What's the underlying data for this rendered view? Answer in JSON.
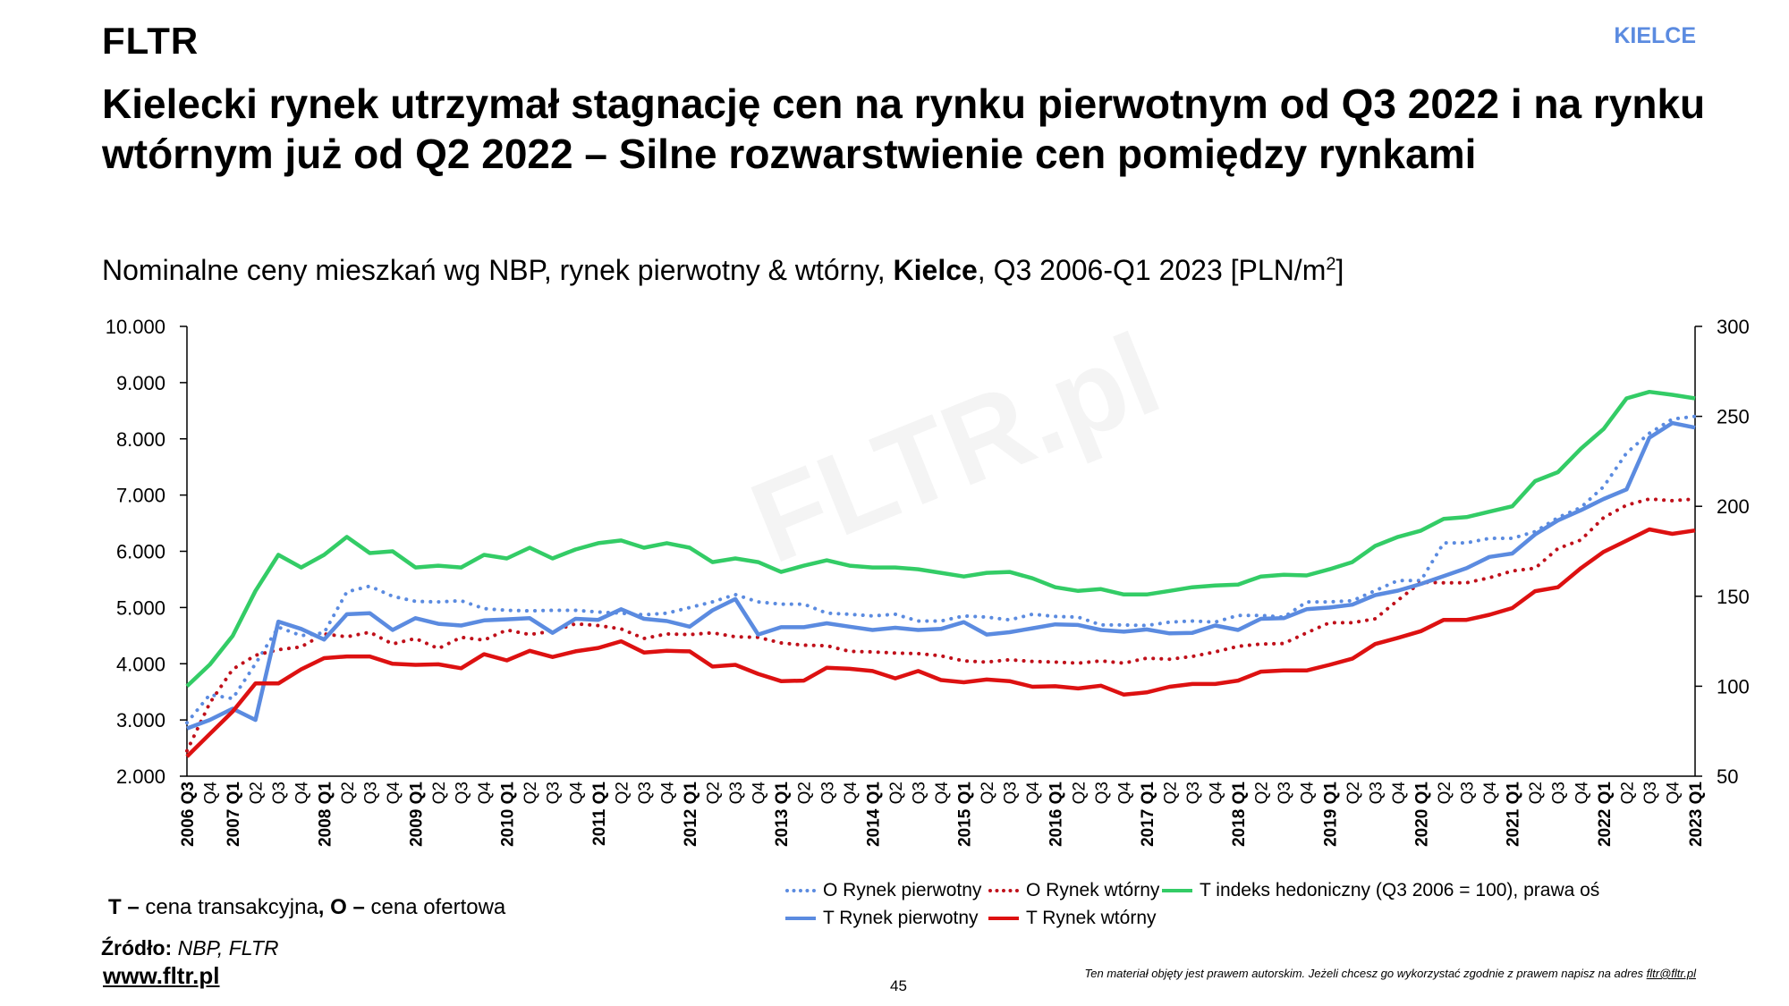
{
  "header": {
    "logo": "FLTR",
    "city": "KIELCE",
    "title": "Kielecki rynek utrzymał stagnację cen na rynku pierwotnym od Q3 2022 i na rynku wtórnym już od Q2 2022 – Silne rozwarstwienie cen pomiędzy rynkami"
  },
  "subtitle": {
    "pre": "Nominalne ceny mieszkań wg NBP, rynek pierwotny & wtórny, ",
    "bold": "Kielce",
    "post": ", Q3 2006-Q1 2023 [PLN/m",
    "sup": "2",
    "end": "]"
  },
  "watermark": "FLTR.pl",
  "chart_data": {
    "type": "line",
    "title": "Nominalne ceny mieszkań wg NBP, rynek pierwotny & wtórny, Kielce, Q3 2006-Q1 2023 [PLN/m2]",
    "x": [
      "2006 Q3",
      "Q4",
      "2007 Q1",
      "Q2",
      "Q3",
      "Q4",
      "2008 Q1",
      "Q2",
      "Q3",
      "Q4",
      "2009 Q1",
      "Q2",
      "Q3",
      "Q4",
      "2010 Q1",
      "Q2",
      "Q3",
      "Q4",
      "2011 Q1",
      "Q2",
      "Q3",
      "Q4",
      "2012 Q1",
      "Q2",
      "Q3",
      "Q4",
      "2013 Q1",
      "Q2",
      "Q3",
      "Q4",
      "2014 Q1",
      "Q2",
      "Q3",
      "Q4",
      "2015 Q1",
      "Q2",
      "Q3",
      "Q4",
      "2016 Q1",
      "Q2",
      "Q3",
      "Q4",
      "2017 Q1",
      "Q2",
      "Q3",
      "Q4",
      "2018 Q1",
      "Q2",
      "Q3",
      "Q4",
      "2019 Q1",
      "Q2",
      "Q3",
      "Q4",
      "2020 Q1",
      "Q2",
      "Q3",
      "Q4",
      "2021 Q1",
      "Q2",
      "Q3",
      "Q4",
      "2022 Q1",
      "Q2",
      "Q3",
      "Q4",
      "2023 Q1"
    ],
    "yleft": {
      "lim": [
        2000,
        10000
      ],
      "ticks": [
        "2.000",
        "3.000",
        "4.000",
        "5.000",
        "6.000",
        "7.000",
        "8.000",
        "9.000",
        "10.000"
      ]
    },
    "yright": {
      "lim": [
        50,
        300
      ],
      "ticks": [
        "50",
        "100",
        "150",
        "200",
        "250",
        "300"
      ]
    },
    "grid": false,
    "legend_position": "bottom",
    "series": [
      {
        "name": "O Rynek pierwotny",
        "axis": "left",
        "style": "dotted",
        "color": "#5b8be0",
        "values": [
          2950,
          3450,
          3380,
          4000,
          4650,
          4500,
          4550,
          5280,
          5380,
          5200,
          5110,
          5100,
          5120,
          4980,
          4950,
          4940,
          4950,
          4950,
          4920,
          4900,
          4870,
          4900,
          5000,
          5100,
          5230,
          5100,
          5060,
          5060,
          4900,
          4880,
          4850,
          4880,
          4760,
          4760,
          4850,
          4830,
          4780,
          4880,
          4840,
          4830,
          4690,
          4690,
          4680,
          4740,
          4760,
          4740,
          4860,
          4860,
          4830,
          5100,
          5100,
          5120,
          5300,
          5480,
          5480,
          6150,
          6150,
          6230,
          6230,
          6350,
          6600,
          6780,
          7150,
          7750,
          8100,
          8350,
          8400
        ]
      },
      {
        "name": "O Rynek wtórny",
        "axis": "left",
        "style": "dotted",
        "color": "#c0101a",
        "values": [
          2450,
          3300,
          3900,
          4150,
          4250,
          4300,
          4530,
          4480,
          4560,
          4350,
          4450,
          4270,
          4470,
          4420,
          4600,
          4520,
          4580,
          4710,
          4680,
          4620,
          4450,
          4530,
          4520,
          4550,
          4480,
          4470,
          4370,
          4330,
          4320,
          4220,
          4210,
          4190,
          4180,
          4140,
          4050,
          4030,
          4070,
          4040,
          4030,
          4010,
          4050,
          4010,
          4100,
          4080,
          4130,
          4210,
          4310,
          4350,
          4360,
          4550,
          4730,
          4730,
          4800,
          5130,
          5450,
          5440,
          5440,
          5530,
          5650,
          5700,
          6050,
          6200,
          6600,
          6820,
          6930,
          6900,
          6930
        ]
      },
      {
        "name": "T indeks hedoniczny (Q3 2006 = 100), prawa oś",
        "axis": "right",
        "style": "solid",
        "color": "#33cc66",
        "values": [
          100,
          112,
          128,
          153,
          173,
          166,
          173,
          183,
          174,
          175,
          166,
          167,
          166,
          173,
          171,
          177,
          171,
          176,
          179.5,
          181,
          177,
          179.5,
          177,
          169,
          171,
          169,
          163.5,
          167,
          170,
          167,
          166,
          166,
          165,
          163,
          161,
          163,
          163.5,
          160,
          155,
          153,
          154,
          151,
          151,
          153,
          155,
          156,
          156.5,
          161,
          162,
          161.6,
          165,
          169,
          178,
          183,
          186.5,
          193,
          194,
          197,
          200,
          214,
          219,
          232,
          243,
          260,
          263.6,
          262,
          260
        ]
      },
      {
        "name": "T Rynek pierwotny",
        "axis": "left",
        "style": "solid",
        "color": "#5b8be0",
        "values": [
          2850,
          3000,
          3200,
          3000,
          4750,
          4620,
          4430,
          4880,
          4900,
          4600,
          4810,
          4710,
          4680,
          4770,
          4790,
          4810,
          4550,
          4800,
          4780,
          4970,
          4800,
          4760,
          4660,
          4950,
          5150,
          4520,
          4650,
          4650,
          4720,
          4660,
          4600,
          4640,
          4600,
          4620,
          4740,
          4520,
          4560,
          4630,
          4700,
          4690,
          4600,
          4570,
          4610,
          4540,
          4550,
          4680,
          4600,
          4800,
          4810,
          4970,
          5000,
          5050,
          5220,
          5300,
          5420,
          5560,
          5700,
          5900,
          5960,
          6300,
          6550,
          6730,
          6930,
          7100,
          8020,
          8280,
          8200
        ]
      },
      {
        "name": "T Rynek wtórny",
        "axis": "left",
        "style": "solid",
        "color": "#dd1111",
        "values": [
          2350,
          2750,
          3150,
          3650,
          3650,
          3900,
          4100,
          4130,
          4130,
          4000,
          3980,
          3990,
          3920,
          4170,
          4060,
          4230,
          4120,
          4220,
          4280,
          4400,
          4200,
          4230,
          4220,
          3950,
          3980,
          3820,
          3690,
          3700,
          3930,
          3910,
          3870,
          3740,
          3870,
          3710,
          3670,
          3720,
          3690,
          3590,
          3600,
          3560,
          3610,
          3450,
          3490,
          3590,
          3640,
          3640,
          3700,
          3860,
          3880,
          3880,
          3980,
          4090,
          4350,
          4460,
          4580,
          4780,
          4780,
          4870,
          4990,
          5290,
          5360,
          5700,
          5990,
          6190,
          6390,
          6310,
          6370
        ]
      }
    ]
  },
  "footer": {
    "note_t": "T –",
    "note_t_text": " cena transakcyjna",
    "note_comma": ",",
    "note_o": " O –",
    "note_o_text": " cena ofertowa",
    "source_label": "Źródło:",
    "source_value": " NBP, FLTR",
    "website": "www.fltr.pl",
    "page_number": "45",
    "copyright": "Ten materiał objęty jest prawem autorskim. Jeżeli chcesz go wykorzystać zgodnie z prawem napisz na adres ",
    "copyright_email": "fltr@fltr.pl"
  }
}
